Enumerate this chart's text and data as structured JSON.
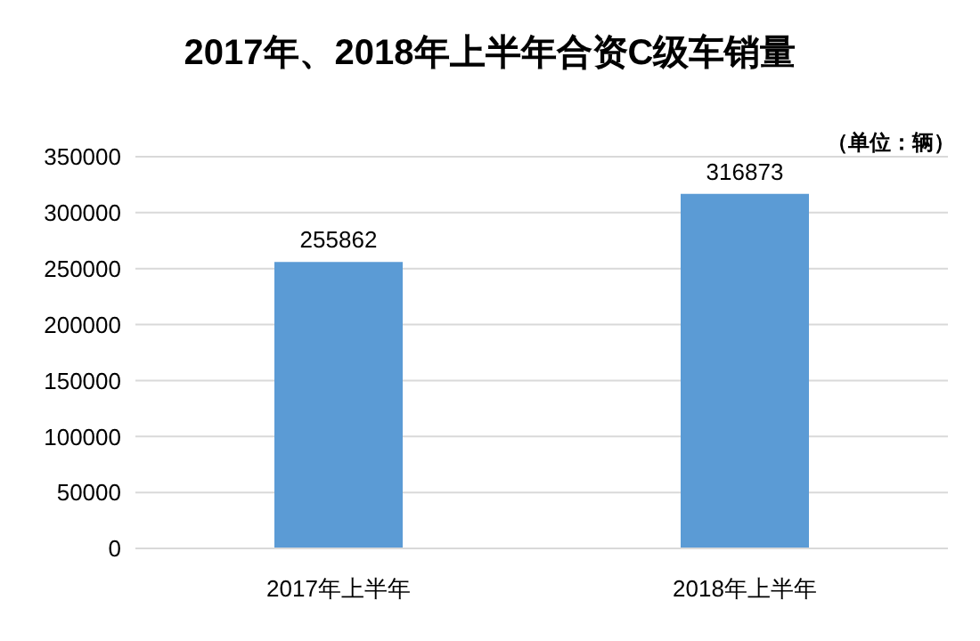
{
  "chart_data": {
    "type": "bar",
    "title": "2017年、2018年上半年合资C级车销量",
    "annotations": [
      "（单位：辆）"
    ],
    "categories": [
      "2017年上半年",
      "2018年上半年"
    ],
    "values": [
      255862,
      316873
    ],
    "color": "#5b9bd5",
    "ylim": [
      0,
      350000
    ],
    "yticks": [
      0,
      50000,
      100000,
      150000,
      200000,
      250000,
      300000,
      350000
    ],
    "grid": "y",
    "data_labels": true
  }
}
